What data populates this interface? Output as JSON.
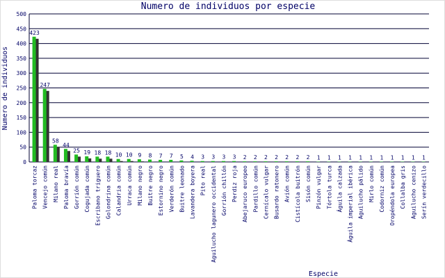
{
  "chart_data": {
    "type": "bar",
    "title": "Numero de individuos por especie",
    "x_label": "Especie",
    "y_label": "Numero de individuos",
    "categories": [
      "Paloma torcaz",
      "Vencejo común",
      "Milano real",
      "Paloma bravía",
      "Gorrión común",
      "Cogujada común",
      "Escribano triguero",
      "Golondrina común",
      "Calandria común",
      "Urraca común",
      "Milano negro",
      "Buitre negro",
      "Estornino negro",
      "Verderón común",
      "Buitre leonado",
      "Lavandera boyera",
      "Pito real",
      "Aguilucho lagunero occidental",
      "Gorrión chillón",
      "Perdiz roja",
      "Abejaruco europeo",
      "Pardillo común",
      "Cernícalo vulgar",
      "Busardo ratonero",
      "Avión común",
      "Cistícola buitrón",
      "Sisón común",
      "Pinzón vulgar",
      "Tórtola turca",
      "Águila calzada",
      "Águila imperial ibérica",
      "Aguilucho pálido",
      "Mirlo común",
      "Codorniz común",
      "Oropéndola europea",
      "Collalba gris",
      "Aguilucho cenizo",
      "Serín verdecillo"
    ],
    "values": [
      423,
      247,
      58,
      44,
      25,
      19,
      18,
      18,
      10,
      10,
      9,
      8,
      7,
      7,
      5,
      4,
      3,
      3,
      3,
      3,
      2,
      2,
      2,
      2,
      2,
      2,
      2,
      1,
      1,
      1,
      1,
      1,
      1,
      1,
      1,
      1,
      1,
      1
    ],
    "color": "#22bb22",
    "ylim": [
      0,
      500
    ],
    "yticks": [
      0,
      50,
      100,
      150,
      200,
      250,
      300,
      350,
      400,
      450,
      500
    ],
    "grid": true
  }
}
